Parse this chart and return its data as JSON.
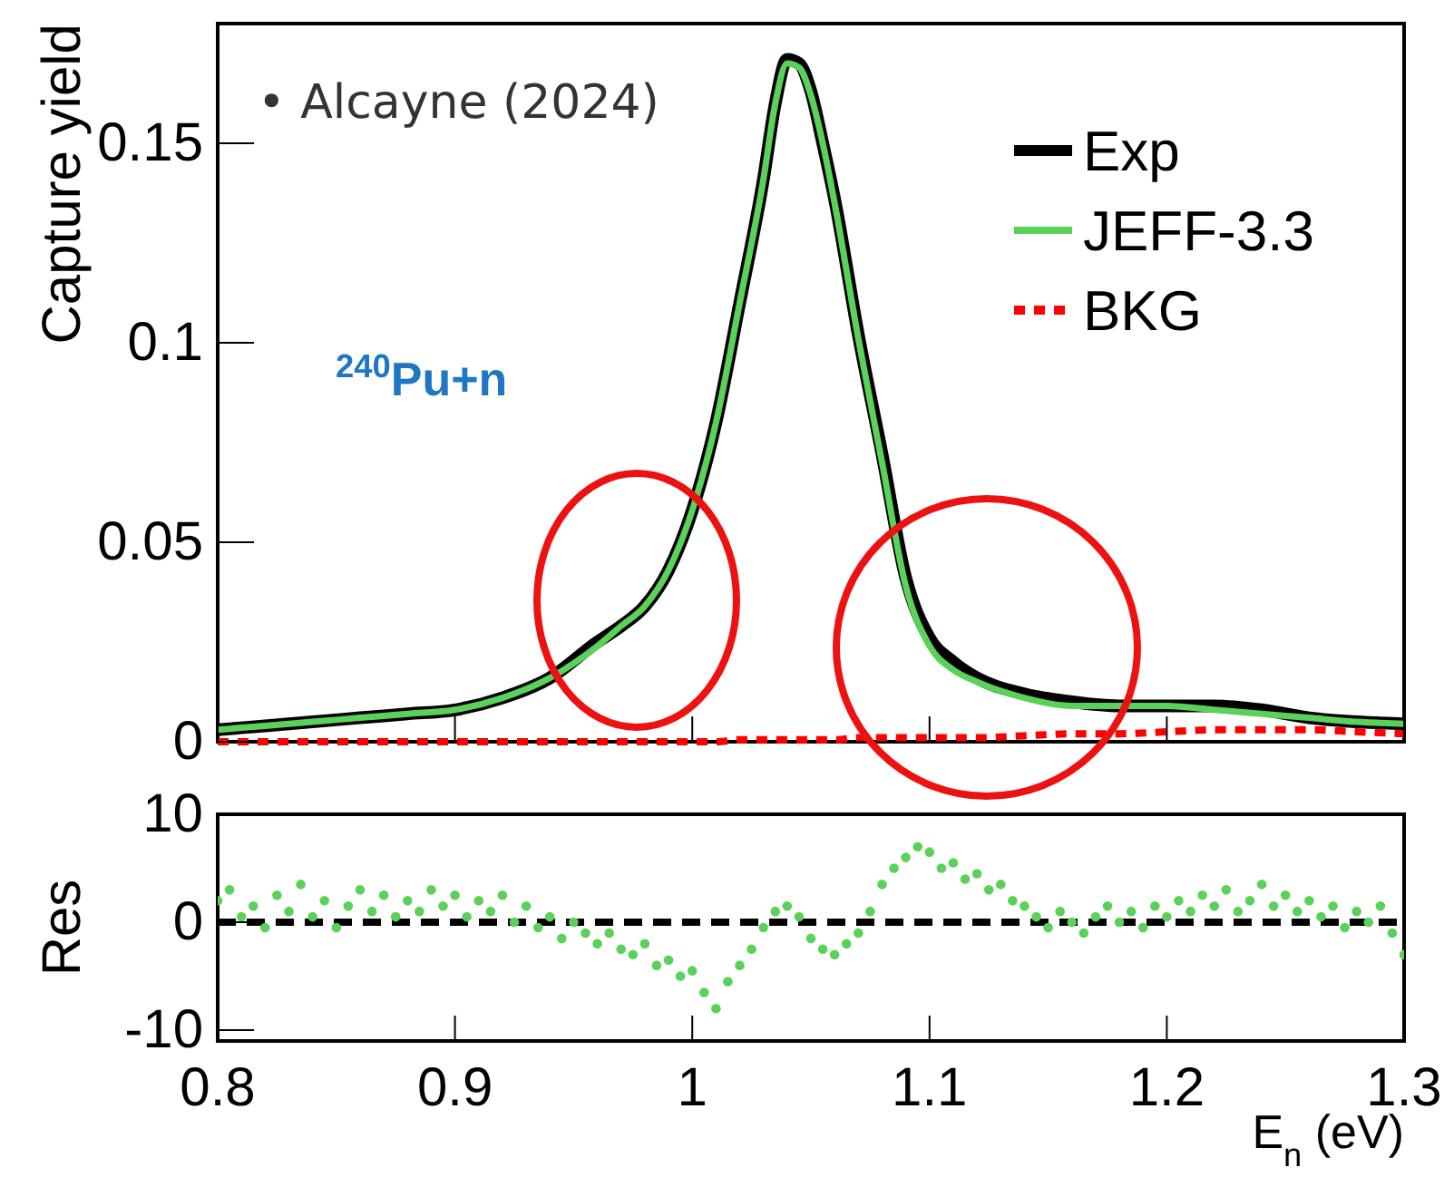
{
  "chart_data": [
    {
      "type": "line",
      "ylabel": "Capture yield",
      "x": [
        0.8,
        0.82,
        0.84,
        0.86,
        0.88,
        0.9,
        0.92,
        0.94,
        0.96,
        0.97,
        0.98,
        0.99,
        1.0,
        1.01,
        1.02,
        1.03,
        1.035,
        1.04,
        1.045,
        1.05,
        1.055,
        1.06,
        1.07,
        1.08,
        1.09,
        1.1,
        1.11,
        1.12,
        1.14,
        1.16,
        1.18,
        1.2,
        1.22,
        1.24,
        1.26,
        1.28,
        1.3
      ],
      "series": [
        {
          "name": "Exp",
          "color": "#000000",
          "line_style": "solid",
          "values": [
            0.003,
            0.004,
            0.005,
            0.006,
            0.007,
            0.008,
            0.011,
            0.016,
            0.025,
            0.029,
            0.034,
            0.043,
            0.058,
            0.08,
            0.11,
            0.141,
            0.16,
            0.171,
            0.17,
            0.163,
            0.15,
            0.136,
            0.102,
            0.072,
            0.041,
            0.026,
            0.02,
            0.016,
            0.012,
            0.01,
            0.009,
            0.009,
            0.009,
            0.008,
            0.006,
            0.005,
            0.0045
          ]
        },
        {
          "name": "JEFF-3.3",
          "color": "#5ad25a",
          "line_style": "solid",
          "values": [
            0.003,
            0.004,
            0.005,
            0.006,
            0.007,
            0.008,
            0.011,
            0.016,
            0.024,
            0.029,
            0.034,
            0.043,
            0.058,
            0.08,
            0.11,
            0.141,
            0.16,
            0.17,
            0.169,
            0.162,
            0.15,
            0.135,
            0.101,
            0.07,
            0.039,
            0.024,
            0.018,
            0.015,
            0.011,
            0.009,
            0.009,
            0.009,
            0.008,
            0.007,
            0.006,
            0.005,
            0.0045
          ]
        },
        {
          "name": "BKG",
          "color": "#ff0000",
          "line_style": "dotted",
          "values": [
            0.0,
            0.0,
            0.0,
            0.0,
            0.0,
            0.0,
            0.0,
            0.0,
            0.0,
            0.0,
            0.0,
            0.0,
            0.0,
            0.0,
            0.0005,
            0.0005,
            0.0005,
            0.0005,
            0.0005,
            0.0005,
            0.0005,
            0.0005,
            0.001,
            0.001,
            0.001,
            0.001,
            0.001,
            0.001,
            0.0015,
            0.002,
            0.002,
            0.0025,
            0.003,
            0.003,
            0.003,
            0.0025,
            0.002
          ]
        }
      ],
      "xlim": [
        0.8,
        1.3
      ],
      "xticks": [
        0.8,
        0.9,
        1,
        1.1,
        1.2,
        1.3
      ],
      "ylim": [
        0,
        0.18
      ],
      "yticks": [
        0,
        0.05,
        0.1,
        0.15
      ],
      "tick_labels": "y",
      "legend": "top right",
      "annotations": [
        "• Alcayne (2024)",
        "$^{240}$Pu+n"
      ]
    },
    {
      "type": "scatter",
      "ylabel": "Res",
      "xlabel": "E$_{n}$ (eV)",
      "marker": "circle",
      "x": [
        0.8,
        0.805,
        0.81,
        0.815,
        0.82,
        0.825,
        0.83,
        0.835,
        0.84,
        0.845,
        0.85,
        0.855,
        0.86,
        0.865,
        0.87,
        0.875,
        0.88,
        0.885,
        0.89,
        0.895,
        0.9,
        0.905,
        0.91,
        0.915,
        0.92,
        0.925,
        0.93,
        0.935,
        0.94,
        0.945,
        0.95,
        0.955,
        0.96,
        0.965,
        0.97,
        0.975,
        0.98,
        0.985,
        0.99,
        0.995,
        1.0,
        1.005,
        1.01,
        1.015,
        1.02,
        1.025,
        1.03,
        1.035,
        1.04,
        1.045,
        1.05,
        1.055,
        1.06,
        1.065,
        1.07,
        1.075,
        1.08,
        1.085,
        1.09,
        1.095,
        1.1,
        1.105,
        1.11,
        1.115,
        1.12,
        1.125,
        1.13,
        1.135,
        1.14,
        1.145,
        1.15,
        1.155,
        1.16,
        1.165,
        1.17,
        1.175,
        1.18,
        1.185,
        1.19,
        1.195,
        1.2,
        1.205,
        1.21,
        1.215,
        1.22,
        1.225,
        1.23,
        1.235,
        1.24,
        1.245,
        1.25,
        1.255,
        1.26,
        1.265,
        1.27,
        1.275,
        1.28,
        1.285,
        1.29,
        1.295,
        1.3
      ],
      "series": [
        {
          "color": "#5ad25a",
          "values": [
            2.0,
            3.0,
            0.5,
            1.5,
            -0.5,
            2.5,
            1.0,
            3.5,
            0.5,
            2.0,
            -0.5,
            1.5,
            3.0,
            1.0,
            2.5,
            0.5,
            2.0,
            1.0,
            3.0,
            1.5,
            2.5,
            0.5,
            2.0,
            1.0,
            2.5,
            0.0,
            1.5,
            -0.5,
            0.5,
            -1.5,
            0.0,
            -1.0,
            -2.0,
            -1.0,
            -2.5,
            -3.0,
            -2.0,
            -4.0,
            -3.5,
            -5.0,
            -4.5,
            -6.5,
            -8.0,
            -5.5,
            -4.0,
            -2.5,
            -0.5,
            1.0,
            1.5,
            0.5,
            -1.5,
            -2.5,
            -3.0,
            -2.0,
            -1.0,
            1.0,
            3.5,
            5.0,
            6.0,
            7.0,
            6.5,
            5.0,
            5.5,
            4.0,
            4.5,
            3.0,
            3.5,
            2.0,
            1.5,
            0.5,
            -0.5,
            1.0,
            0.0,
            -1.0,
            0.5,
            1.5,
            0.0,
            1.0,
            -0.5,
            1.5,
            0.5,
            2.0,
            1.0,
            2.5,
            1.5,
            3.0,
            1.0,
            2.0,
            3.5,
            1.5,
            2.5,
            1.0,
            2.0,
            0.5,
            1.5,
            -0.5,
            1.0,
            0.0,
            1.5,
            -1.0,
            -3.0
          ]
        }
      ],
      "xlim": [
        0.8,
        1.3
      ],
      "xticks": [
        0.8,
        0.9,
        1,
        1.1,
        1.2,
        1.3
      ],
      "ylim": [
        -11,
        10
      ],
      "yticks": [
        -10,
        0,
        10
      ],
      "ref_lines": [
        {
          "axis": "y",
          "value": 0,
          "color": "#000000",
          "line_style": "dashed"
        }
      ]
    }
  ]
}
